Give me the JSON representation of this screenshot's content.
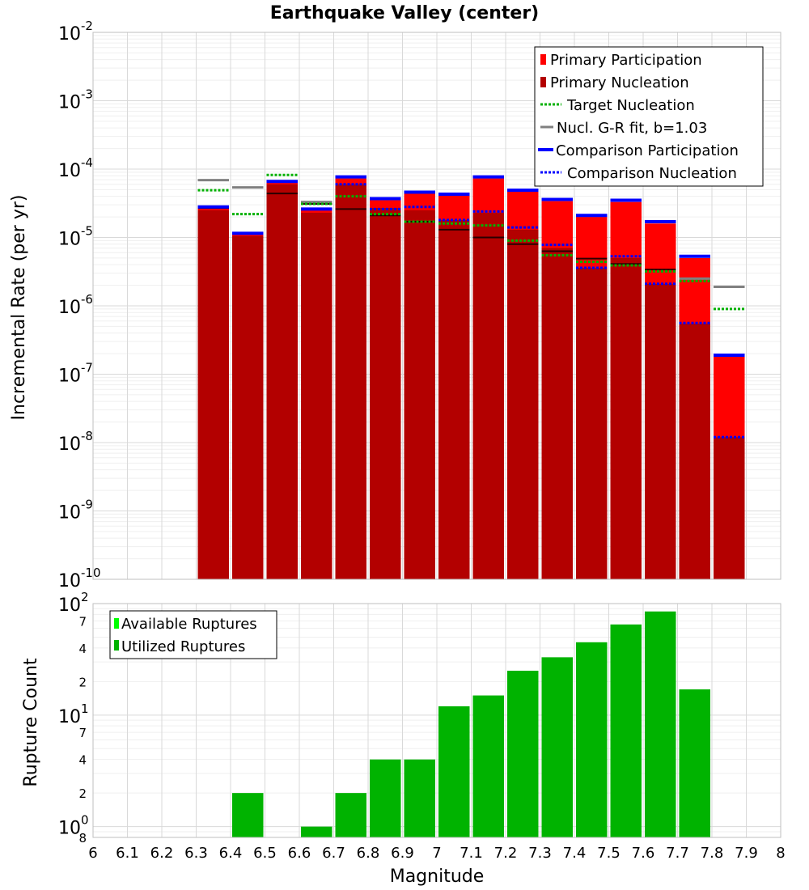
{
  "title": "Earthquake Valley (center)",
  "colors": {
    "primary_participation": "#ff0000",
    "primary_nucleation": "#b30000",
    "target_nucleation": "#00b000",
    "gr_fit": "#808080",
    "comparison": "#0000ff",
    "ruptures_available": "#00ff00",
    "ruptures_utilized": "#00b300",
    "grid_major": "#d9d9d9",
    "grid_minor": "#efefef"
  },
  "chart_data": [
    {
      "type": "bar",
      "scale": "log",
      "ylabel": "Incremental Rate (per yr)",
      "xlim": [
        6,
        8
      ],
      "ylim": [
        1e-10,
        0.01
      ],
      "bin_width": 0.1,
      "legend_position": "top-right",
      "legend": [
        "Primary Participation",
        "Primary Nucleation",
        "Target Nucleation",
        "Nucl. G-R fit, b=1.03",
        "Comparison Participation",
        "Comparison Nucleation"
      ],
      "x": [
        6.35,
        6.45,
        6.55,
        6.65,
        6.75,
        6.85,
        6.95,
        7.05,
        7.15,
        7.25,
        7.35,
        7.45,
        7.55,
        7.65,
        7.75,
        7.85
      ],
      "series": [
        {
          "name": "Primary Participation",
          "values": [
            2.7e-05,
            1.1e-05,
            6.3e-05,
            2.5e-05,
            7.3e-05,
            3.5e-05,
            4.4e-05,
            4.1e-05,
            7.3e-05,
            4.7e-05,
            3.4e-05,
            2e-05,
            3.3e-05,
            1.6e-05,
            5e-06,
            1.8e-07
          ]
        },
        {
          "name": "Primary Nucleation",
          "values": [
            2.5e-05,
            1.05e-05,
            6e-05,
            2.3e-05,
            6e-05,
            2.7e-05,
            2.5e-05,
            1.8e-05,
            2.3e-05,
            1.3e-05,
            7e-06,
            3.6e-06,
            5e-06,
            2.1e-06,
            5.5e-07,
            1.2e-08
          ]
        },
        {
          "name": "Target Nucleation",
          "values": [
            4.9e-05,
            2.2e-05,
            8.2e-05,
            3.1e-05,
            4e-05,
            2.2e-05,
            1.7e-05,
            1.6e-05,
            1.5e-05,
            9e-06,
            5.5e-06,
            4.4e-06,
            3.9e-06,
            3.2e-06,
            2.3e-06,
            9e-07
          ]
        },
        {
          "name": "Nucl. G-R fit, b=1.03",
          "values": [
            6.9e-05,
            5.4e-05,
            null,
            3.3e-05,
            null,
            null,
            null,
            null,
            null,
            null,
            null,
            null,
            null,
            null,
            2.5e-06,
            1.9e-06
          ]
        },
        {
          "name": "Comparison Participation",
          "values": [
            2.8e-05,
            1.15e-05,
            6.6e-05,
            2.6e-05,
            7.7e-05,
            3.7e-05,
            4.6e-05,
            4.3e-05,
            7.7e-05,
            4.9e-05,
            3.6e-05,
            2.1e-05,
            3.5e-05,
            1.7e-05,
            5.3e-06,
            1.9e-07
          ]
        },
        {
          "name": "Comparison Nucleation",
          "values": [
            null,
            null,
            null,
            null,
            6e-05,
            2.6e-05,
            2.8e-05,
            1.8e-05,
            2.4e-05,
            1.4e-05,
            7.8e-06,
            3.6e-06,
            5.3e-06,
            2.1e-06,
            5.6e-07,
            1.2e-08
          ]
        }
      ],
      "dark_ticks": [
        2.7e-05,
        null,
        4.4e-05,
        3.1e-05,
        2.6e-05,
        2.1e-05,
        1.7e-05,
        1.3e-05,
        1e-05,
        8e-06,
        6.3e-06,
        4.9e-06,
        4.1e-06,
        3.4e-06,
        null,
        null
      ]
    },
    {
      "type": "bar",
      "scale": "log",
      "xlabel": "Magnitude",
      "ylabel": "Rupture Count",
      "xlim": [
        6,
        8
      ],
      "ylim": [
        0.8,
        100
      ],
      "legend_position": "top-left",
      "legend": [
        "Available Ruptures",
        "Utilized Ruptures"
      ],
      "x": [
        6.45,
        6.65,
        6.75,
        6.85,
        6.95,
        7.05,
        7.15,
        7.25,
        7.35,
        7.45,
        7.55,
        7.65,
        7.75
      ],
      "series": [
        {
          "name": "Utilized Ruptures",
          "values": [
            2,
            1,
            2,
            4,
            4,
            12,
            15,
            25,
            33,
            45,
            65,
            85,
            17
          ]
        }
      ]
    }
  ],
  "axes": {
    "x_ticks": [
      "6",
      "6.1",
      "6.2",
      "6.3",
      "6.4",
      "6.5",
      "6.6",
      "6.7",
      "6.8",
      "6.9",
      "7",
      "7.1",
      "7.2",
      "7.3",
      "7.4",
      "7.5",
      "7.6",
      "7.7",
      "7.8",
      "7.9",
      "8"
    ],
    "top_y_ticks": [
      {
        "base": "10",
        "exp": "-10"
      },
      {
        "base": "10",
        "exp": "-9"
      },
      {
        "base": "10",
        "exp": "-8"
      },
      {
        "base": "10",
        "exp": "-7"
      },
      {
        "base": "10",
        "exp": "-6"
      },
      {
        "base": "10",
        "exp": "-5"
      },
      {
        "base": "10",
        "exp": "-4"
      },
      {
        "base": "10",
        "exp": "-3"
      },
      {
        "base": "10",
        "exp": "-2"
      }
    ],
    "bottom_y_ticks": [
      {
        "label": "8",
        "value": 0.8
      },
      {
        "label": "2",
        "value": 2
      },
      {
        "label": "4",
        "value": 4
      },
      {
        "label": "7",
        "value": 7
      },
      {
        "label": "2",
        "value": 20
      },
      {
        "label": "4",
        "value": 40
      },
      {
        "label": "7",
        "value": 70
      }
    ],
    "bottom_y_major": [
      {
        "base": "10",
        "exp": "0",
        "value": 1
      },
      {
        "base": "10",
        "exp": "1",
        "value": 10
      },
      {
        "base": "10",
        "exp": "2",
        "value": 100
      }
    ]
  }
}
